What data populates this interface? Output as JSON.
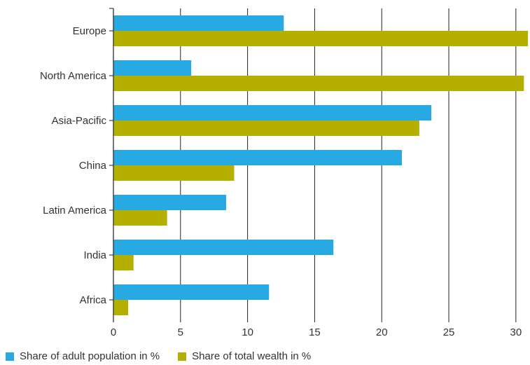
{
  "chart_data": {
    "type": "bar",
    "orientation": "horizontal",
    "categories": [
      "Europe",
      "North America",
      "Asia-Pacific",
      "China",
      "Latin America",
      "India",
      "Africa"
    ],
    "series": [
      {
        "name": "Share of adult population in %",
        "color": "#29A9E1",
        "values": [
          12.7,
          5.8,
          23.7,
          21.5,
          8.4,
          16.4,
          11.6
        ]
      },
      {
        "name": "Share of total wealth in %",
        "color": "#B5B000",
        "values": [
          30.9,
          30.6,
          22.8,
          9.0,
          4.0,
          1.5,
          1.1
        ]
      }
    ],
    "xticks": [
      "0",
      "5",
      "10",
      "15",
      "20",
      "25",
      "30"
    ],
    "xlim": [
      0,
      31
    ],
    "grid": "vertical",
    "legend_position": "bottom-left",
    "title": "",
    "xlabel": "",
    "ylabel": ""
  }
}
